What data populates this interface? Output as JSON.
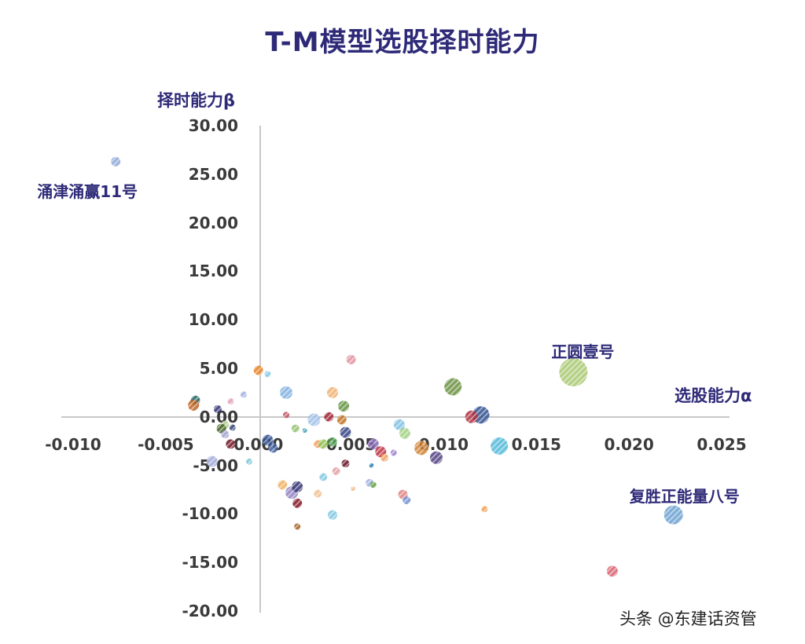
{
  "chart_data": {
    "type": "scatter",
    "title": "T-M模型选股择时能力",
    "xlabel": "选股能力α",
    "ylabel": "择时能力β",
    "xlim": [
      -0.01,
      0.025
    ],
    "ylim": [
      -20,
      30
    ],
    "x_ticks": [
      "-0.010",
      "-0.005",
      "0.000",
      "0.005",
      "0.010",
      "0.015",
      "0.020",
      "0.025"
    ],
    "y_ticks": [
      "30.00",
      "25.00",
      "20.00",
      "15.00",
      "10.00",
      "5.00",
      "0.00",
      "-5.00",
      "-10.00",
      "-15.00",
      "-20.00"
    ],
    "grid": false,
    "legend": "none",
    "annotations": [
      {
        "label": "涌津涌赢11号",
        "x": -0.0077,
        "y": 26.3
      },
      {
        "label": "正圆壹号",
        "x": 0.017,
        "y": 4.6
      },
      {
        "label": "复胜正能量八号",
        "x": 0.0224,
        "y": -10.1
      }
    ],
    "points": [
      {
        "x": -0.0077,
        "y": 26.3,
        "r": 6,
        "color": "#8fa8d8"
      },
      {
        "x": 0.017,
        "y": 4.6,
        "r": 18,
        "color": "#a8c870"
      },
      {
        "x": 0.0224,
        "y": -10.1,
        "r": 12,
        "color": "#6aa0d0"
      },
      {
        "x": 0.0191,
        "y": -15.9,
        "r": 7,
        "color": "#d86070"
      },
      {
        "x": 0.0105,
        "y": 3.1,
        "r": 11,
        "color": "#6a9040"
      },
      {
        "x": 0.012,
        "y": 0.2,
        "r": 11,
        "color": "#2f4f8f"
      },
      {
        "x": 0.0115,
        "y": 0.0,
        "r": 8,
        "color": "#b03040"
      },
      {
        "x": 0.013,
        "y": -3.0,
        "r": 11,
        "color": "#50b8d8"
      },
      {
        "x": 0.0088,
        "y": -3.2,
        "r": 9,
        "color": "#d08030"
      },
      {
        "x": 0.0096,
        "y": -4.2,
        "r": 8,
        "color": "#504080"
      },
      {
        "x": 0.0076,
        "y": -0.8,
        "r": 7,
        "color": "#80c0e0"
      },
      {
        "x": 0.0079,
        "y": -1.7,
        "r": 7,
        "color": "#a0d080"
      },
      {
        "x": 0.005,
        "y": 5.9,
        "r": 6,
        "color": "#e090a0"
      },
      {
        "x": 0.004,
        "y": 2.5,
        "r": 7,
        "color": "#f0b070"
      },
      {
        "x": 0.0046,
        "y": 1.1,
        "r": 7,
        "color": "#609040"
      },
      {
        "x": 0.0038,
        "y": 0.0,
        "r": 6,
        "color": "#a02030"
      },
      {
        "x": 0.0045,
        "y": -0.3,
        "r": 6,
        "color": "#c07020"
      },
      {
        "x": 0.003,
        "y": -0.3,
        "r": 8,
        "color": "#a0c0e8"
      },
      {
        "x": 0.0047,
        "y": -1.6,
        "r": 7,
        "color": "#304080"
      },
      {
        "x": 0.004,
        "y": -2.6,
        "r": 6,
        "color": "#50a050"
      },
      {
        "x": 0.0062,
        "y": -2.8,
        "r": 7,
        "color": "#8060b0"
      },
      {
        "x": 0.0066,
        "y": -3.6,
        "r": 7,
        "color": "#c03040"
      },
      {
        "x": 0.0068,
        "y": -4.2,
        "r": 5,
        "color": "#f0a060"
      },
      {
        "x": 0.0073,
        "y": -3.7,
        "r": 4,
        "color": "#a080d0"
      },
      {
        "x": 0.0047,
        "y": -4.8,
        "r": 5,
        "color": "#601020"
      },
      {
        "x": 0.0061,
        "y": -5.0,
        "r": 3,
        "color": "#3080b0"
      },
      {
        "x": 0.006,
        "y": -6.8,
        "r": 5,
        "color": "#a0b0e0"
      },
      {
        "x": 0.0062,
        "y": -7.0,
        "r": 4,
        "color": "#60a040"
      },
      {
        "x": 0.0078,
        "y": -8.0,
        "r": 6,
        "color": "#e08080"
      },
      {
        "x": 0.008,
        "y": -8.6,
        "r": 5,
        "color": "#7090d0"
      },
      {
        "x": 0.0122,
        "y": -9.5,
        "r": 4,
        "color": "#f0a050"
      },
      {
        "x": 0.0015,
        "y": 2.5,
        "r": 8,
        "color": "#80b0e0"
      },
      {
        "x": 0.0005,
        "y": 4.4,
        "r": 4,
        "color": "#80c8e0"
      },
      {
        "x": 0.0,
        "y": 4.8,
        "r": 6,
        "color": "#e88020"
      },
      {
        "x": -0.0008,
        "y": 2.3,
        "r": 4,
        "color": "#a0b0e0"
      },
      {
        "x": -0.0015,
        "y": 1.6,
        "r": 4,
        "color": "#e0a0b0"
      },
      {
        "x": -0.0034,
        "y": 1.7,
        "r": 6,
        "color": "#206060"
      },
      {
        "x": -0.0035,
        "y": 1.2,
        "r": 7,
        "color": "#c06020"
      },
      {
        "x": -0.0022,
        "y": 0.8,
        "r": 5,
        "color": "#303070"
      },
      {
        "x": -0.0018,
        "y": -0.8,
        "r": 5,
        "color": "#b0d090"
      },
      {
        "x": -0.002,
        "y": -1.2,
        "r": 6,
        "color": "#406020"
      },
      {
        "x": -0.0014,
        "y": -1.1,
        "r": 4,
        "color": "#304070"
      },
      {
        "x": -0.0018,
        "y": -1.8,
        "r": 5,
        "color": "#a0a0d0"
      },
      {
        "x": -0.0015,
        "y": -2.8,
        "r": 6,
        "color": "#701020"
      },
      {
        "x": 0.0015,
        "y": 0.2,
        "r": 4,
        "color": "#c05060"
      },
      {
        "x": 0.002,
        "y": -1.2,
        "r": 5,
        "color": "#90c070"
      },
      {
        "x": 0.0025,
        "y": -1.4,
        "r": 3,
        "color": "#40a0b0"
      },
      {
        "x": 0.0032,
        "y": -2.8,
        "r": 5,
        "color": "#f0a060"
      },
      {
        "x": 0.0035,
        "y": -2.8,
        "r": 6,
        "color": "#90c050"
      },
      {
        "x": 0.0005,
        "y": -2.4,
        "r": 7,
        "color": "#305090"
      },
      {
        "x": 0.0008,
        "y": -3.2,
        "r": 6,
        "color": "#4060a0"
      },
      {
        "x": -0.0005,
        "y": -4.6,
        "r": 4,
        "color": "#80c8d8"
      },
      {
        "x": -0.0025,
        "y": -4.6,
        "r": 7,
        "color": "#a0a8d8"
      },
      {
        "x": 0.0013,
        "y": -7.0,
        "r": 6,
        "color": "#f0b060"
      },
      {
        "x": 0.0018,
        "y": -7.8,
        "r": 8,
        "color": "#9080c0"
      },
      {
        "x": 0.0021,
        "y": -7.2,
        "r": 7,
        "color": "#303070"
      },
      {
        "x": 0.0021,
        "y": -8.9,
        "r": 6,
        "color": "#801020"
      },
      {
        "x": 0.0035,
        "y": -6.2,
        "r": 5,
        "color": "#80c8e0"
      },
      {
        "x": 0.0042,
        "y": -5.6,
        "r": 5,
        "color": "#e0a0a0"
      },
      {
        "x": 0.0032,
        "y": -7.9,
        "r": 5,
        "color": "#f0c090"
      },
      {
        "x": 0.0051,
        "y": -7.4,
        "r": 3,
        "color": "#f0c090"
      },
      {
        "x": 0.004,
        "y": -10.1,
        "r": 6,
        "color": "#80c8e0"
      },
      {
        "x": 0.0021,
        "y": -11.3,
        "r": 4,
        "color": "#a06020"
      }
    ]
  },
  "footer": {
    "watermark": "头条 @东建话资管"
  }
}
